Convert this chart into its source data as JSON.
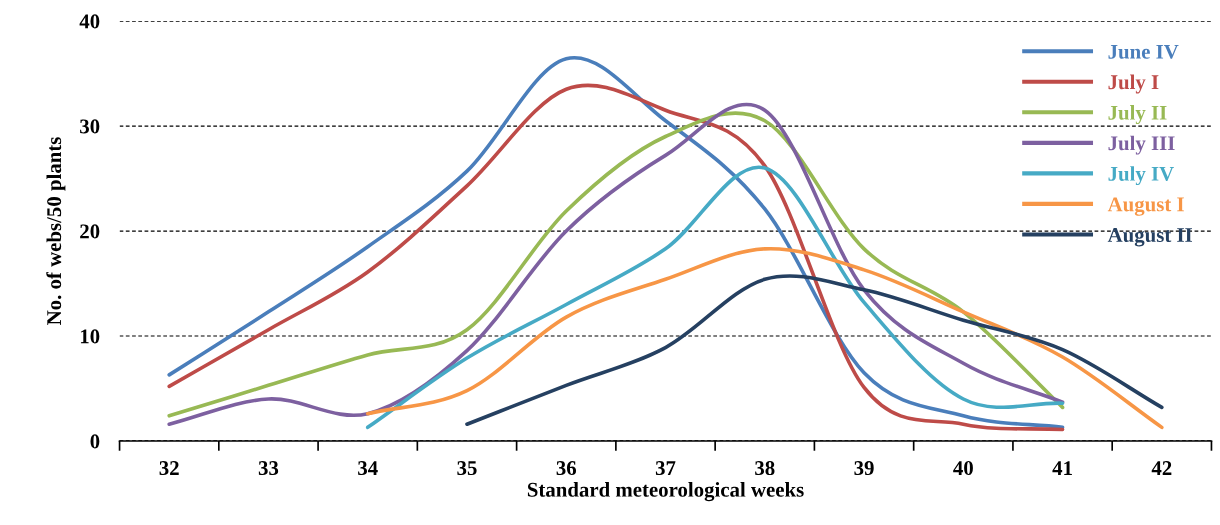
{
  "chart_data": {
    "type": "line",
    "xlabel": "Standard meteorological weeks",
    "ylabel": "No. of webs/50 plants",
    "categories": [
      "32",
      "33",
      "34",
      "35",
      "36",
      "37",
      "38",
      "39",
      "40",
      "41",
      "42"
    ],
    "ylim": [
      0,
      40
    ],
    "yticks": [
      0,
      10,
      20,
      30,
      40
    ],
    "grid": "y",
    "legend": "top right",
    "line_style": "solid",
    "marker": "none",
    "series": [
      {
        "name": "June IV",
        "color": "#4a7ebb",
        "values": [
          6.3,
          12.3,
          18.5,
          25.7,
          36.4,
          30.5,
          22.1,
          6.5,
          2.4,
          1.3,
          null
        ]
      },
      {
        "name": "July I",
        "color": "#be4b48",
        "values": [
          5.2,
          10.6,
          16.1,
          24.3,
          33.5,
          31.5,
          26.2,
          5.1,
          1.6,
          1.1,
          null
        ]
      },
      {
        "name": "July II",
        "color": "#98b954",
        "values": [
          2.4,
          5.3,
          8.2,
          10.6,
          21.9,
          29.0,
          30.5,
          18.3,
          12.3,
          3.2,
          null
        ]
      },
      {
        "name": "July III",
        "color": "#7d60a0",
        "values": [
          1.6,
          4.0,
          2.6,
          8.6,
          20.0,
          27.2,
          31.5,
          14.4,
          7.4,
          3.7,
          null
        ]
      },
      {
        "name": "July IV",
        "color": "#46aac5",
        "values": [
          null,
          null,
          1.3,
          7.9,
          13.0,
          18.3,
          26.0,
          13.2,
          4.0,
          3.6,
          null
        ]
      },
      {
        "name": "August I",
        "color": "#f79646",
        "values": [
          null,
          null,
          2.6,
          4.8,
          11.8,
          15.4,
          18.3,
          16.3,
          12.3,
          8.0,
          1.3
        ]
      },
      {
        "name": "August II",
        "color": "#254061",
        "values": [
          null,
          null,
          null,
          1.6,
          5.3,
          8.9,
          15.4,
          14.4,
          11.5,
          8.7,
          3.2
        ]
      }
    ]
  }
}
